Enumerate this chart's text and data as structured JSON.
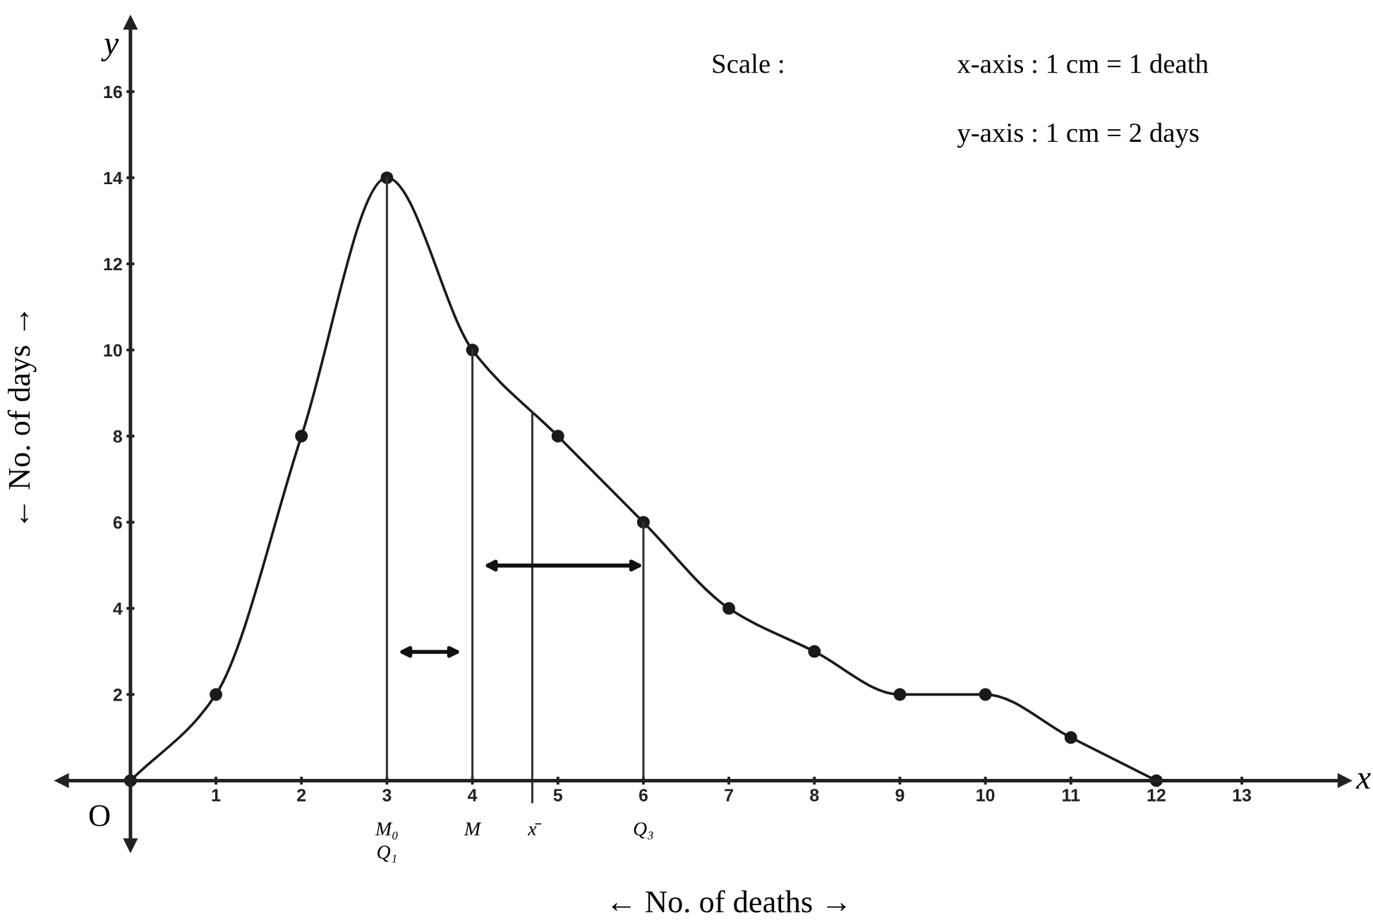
{
  "chart_data": {
    "type": "line",
    "xlabel": "← No. of deaths →",
    "ylabel": "← No. of days →",
    "x": [
      0,
      1,
      2,
      3,
      4,
      5,
      6,
      7,
      8,
      9,
      10,
      11,
      12
    ],
    "series": [
      {
        "values": [
          0,
          2,
          8,
          14,
          10,
          8,
          6,
          4,
          3,
          2,
          2,
          1,
          0
        ],
        "color": "#1a1a1a"
      }
    ],
    "xlim": [
      -0.8,
      14.2
    ],
    "ylim": [
      -1.5,
      17.6
    ],
    "xticks": [
      1,
      2,
      3,
      4,
      5,
      6,
      7,
      8,
      9,
      10,
      11,
      12,
      13
    ],
    "yticks": [
      2,
      4,
      6,
      8,
      10,
      12,
      14,
      16
    ],
    "grid": false,
    "legend": false,
    "marker": "circle",
    "line_style": "solid",
    "ref_lines": [
      {
        "axis": "x",
        "value": 3,
        "label": "M₀\nQ₁",
        "color": "#333333"
      },
      {
        "axis": "x",
        "value": 4,
        "label": "M",
        "color": "#333333"
      },
      {
        "axis": "x",
        "value": 4.7,
        "label": "x̄",
        "color": "#333333"
      },
      {
        "axis": "x",
        "value": 6,
        "label": "Q₃",
        "color": "#333333"
      }
    ],
    "annotations": [
      "Scale :",
      "x-axis : 1 cm = 1 death",
      "y-axis : 1 cm = 2 days",
      {
        "text": "O",
        "x": 0,
        "y": 0
      },
      "x",
      "y"
    ]
  }
}
